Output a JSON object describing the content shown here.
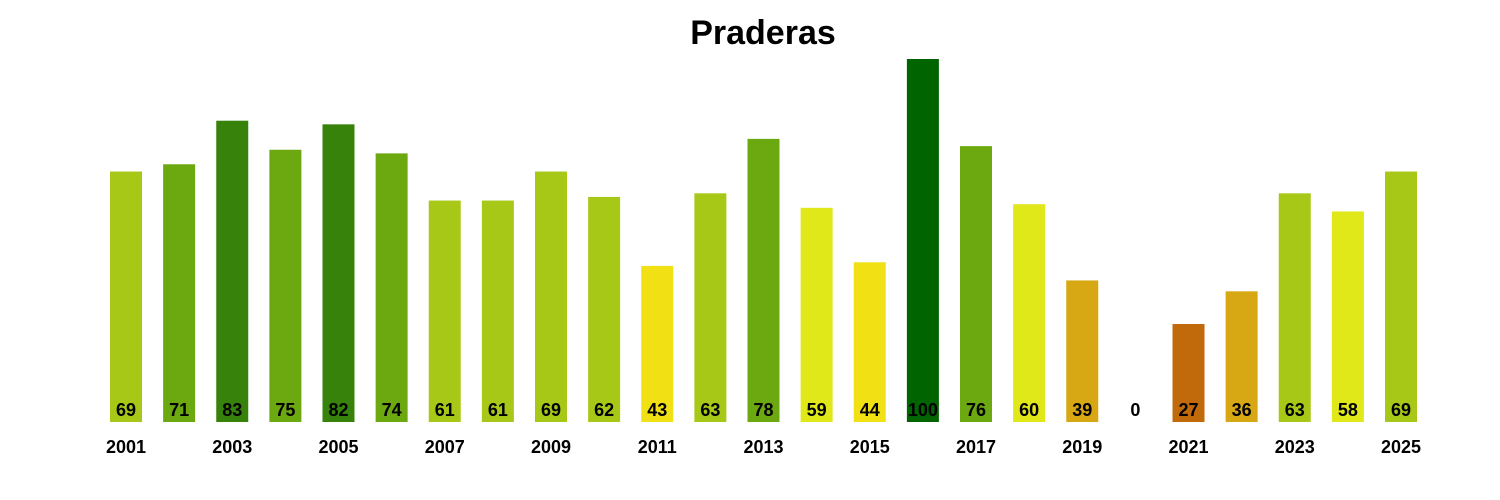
{
  "chart_data": {
    "type": "bar",
    "title": "Praderas",
    "xlabel": "",
    "ylabel": "",
    "ylim": [
      0,
      100
    ],
    "grid": false,
    "categories": [
      "2001",
      "2002",
      "2003",
      "2004",
      "2005",
      "2006",
      "2007",
      "2008",
      "2009",
      "2010",
      "2011",
      "2012",
      "2013",
      "2014",
      "2015",
      "2016",
      "2017",
      "2018",
      "2019",
      "2020",
      "2021",
      "2022",
      "2023",
      "2024",
      "2025"
    ],
    "tick_labels": [
      "2001",
      "",
      "2003",
      "",
      "2005",
      "",
      "2007",
      "",
      "2009",
      "",
      "2011",
      "",
      "2013",
      "",
      "2015",
      "",
      "2017",
      "",
      "2019",
      "",
      "2021",
      "",
      "2023",
      "",
      "2025"
    ],
    "values": [
      69,
      71,
      83,
      75,
      82,
      74,
      61,
      61,
      69,
      62,
      43,
      63,
      78,
      59,
      44,
      100,
      76,
      60,
      39,
      0,
      27,
      36,
      63,
      58,
      69
    ],
    "value_labels": [
      "69",
      "71",
      "83",
      "75",
      "82",
      "74",
      "61",
      "61",
      "69",
      "62",
      "43",
      "63",
      "78",
      "59",
      "44",
      "100",
      "76",
      "60",
      "39",
      "0",
      "27",
      "36",
      "63",
      "58",
      "69"
    ],
    "colors": [
      "#a8c817",
      "#6ca80f",
      "#37820b",
      "#6ca80f",
      "#37820b",
      "#6ca80f",
      "#a8c817",
      "#a8c817",
      "#a8c817",
      "#a8c817",
      "#f0e014",
      "#a8c817",
      "#6ca80f",
      "#e0e81a",
      "#f0e014",
      "#006400",
      "#6ca80f",
      "#e0e81a",
      "#d7a814",
      "#ffffff",
      "#c06a0b",
      "#d7a814",
      "#a8c817",
      "#e0e81a",
      "#a8c817"
    ]
  }
}
